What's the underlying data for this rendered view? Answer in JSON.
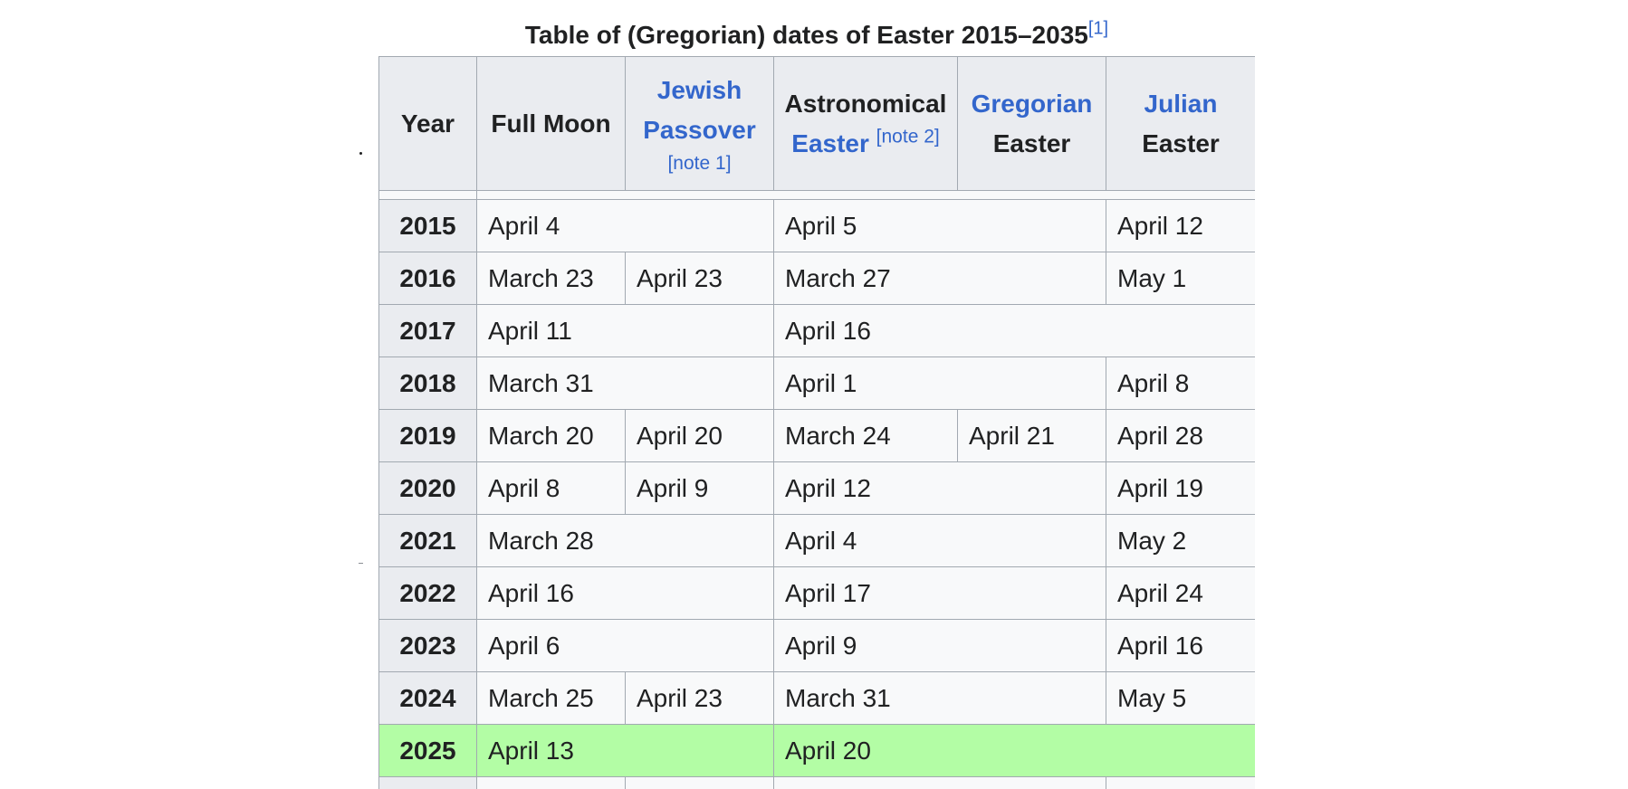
{
  "caption": {
    "title": "Table of (Gregorian) dates of Easter 2015–2035",
    "ref": "[1]"
  },
  "headers": {
    "year": "Year",
    "full_moon": "Full Moon",
    "passover_line1": "Jewish",
    "passover_line2": "Passover",
    "passover_note": "[note 1]",
    "astro_line1": "Astronomical",
    "astro_line2": "Easter",
    "astro_note": "[note 2]",
    "gregorian_line1": "Gregorian",
    "gregorian_line2": "Easter",
    "julian_line1": "Julian",
    "julian_line2": "Easter"
  },
  "rows": [
    {
      "year": "2015",
      "full_moon": "April 4",
      "astro": "April 5",
      "julian": "April 12"
    },
    {
      "year": "2016",
      "full_moon": "March 23",
      "passover": "April 23",
      "astro": "March 27",
      "julian": "May 1"
    },
    {
      "year": "2017",
      "full_moon": "April 11",
      "astro": "April 16"
    },
    {
      "year": "2018",
      "full_moon": "March 31",
      "astro": "April 1",
      "julian": "April 8"
    },
    {
      "year": "2019",
      "full_moon": "March 20",
      "passover": "April 20",
      "astro": "March 24",
      "gregorian": "April 21",
      "julian": "April 28"
    },
    {
      "year": "2020",
      "full_moon": "April 8",
      "passover": "April 9",
      "astro": "April 12",
      "julian": "April 19"
    },
    {
      "year": "2021",
      "full_moon": "March 28",
      "astro": "April 4",
      "julian": "May 2"
    },
    {
      "year": "2022",
      "full_moon": "April 16",
      "astro": "April 17",
      "julian": "April 24"
    },
    {
      "year": "2023",
      "full_moon": "April 6",
      "astro": "April 9",
      "julian": "April 16"
    },
    {
      "year": "2024",
      "full_moon": "March 25",
      "passover": "April 23",
      "astro": "March 31",
      "julian": "May 5"
    },
    {
      "year": "2025",
      "full_moon": "April 13",
      "astro": "April 20"
    }
  ],
  "colors": {
    "header_bg": "#eaecf0",
    "cell_bg": "#f8f9fa",
    "border": "#a2a9b1",
    "link": "#3366cc",
    "current_year_highlight": "#b3fda5"
  }
}
